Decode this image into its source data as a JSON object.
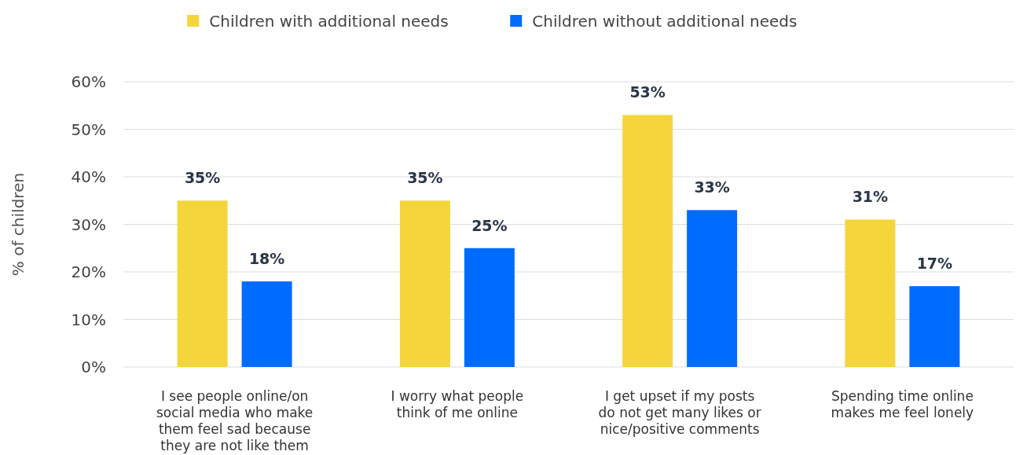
{
  "chart_data": {
    "type": "bar",
    "ylabel": "% of children",
    "categories": [
      "I see people online/on social media who make them feel sad because they are not like them",
      "I worry what people think of me online",
      "I get upset if my posts do not get many likes or nice/positive comments",
      "Spending time online makes me feel lonely"
    ],
    "series": [
      {
        "name": "Children with additional needs",
        "color": "#f4d63a",
        "values": [
          35,
          35,
          53,
          31
        ],
        "value_labels": [
          "35%",
          "35%",
          "53%",
          "31%"
        ]
      },
      {
        "name": "Children without additional needs",
        "color": "#006cff",
        "values": [
          18,
          25,
          33,
          17
        ],
        "value_labels": [
          "18%",
          "25%",
          "33%",
          "17%"
        ]
      }
    ],
    "ylim": [
      0,
      60
    ],
    "yticks": [
      {
        "value": 0,
        "label": "0%"
      },
      {
        "value": 10,
        "label": "10%"
      },
      {
        "value": 20,
        "label": "20%"
      },
      {
        "value": 30,
        "label": "30%"
      },
      {
        "value": 40,
        "label": "40%"
      },
      {
        "value": 50,
        "label": "50%"
      },
      {
        "value": 60,
        "label": "60%"
      }
    ],
    "grid": "y",
    "legend": "top"
  }
}
